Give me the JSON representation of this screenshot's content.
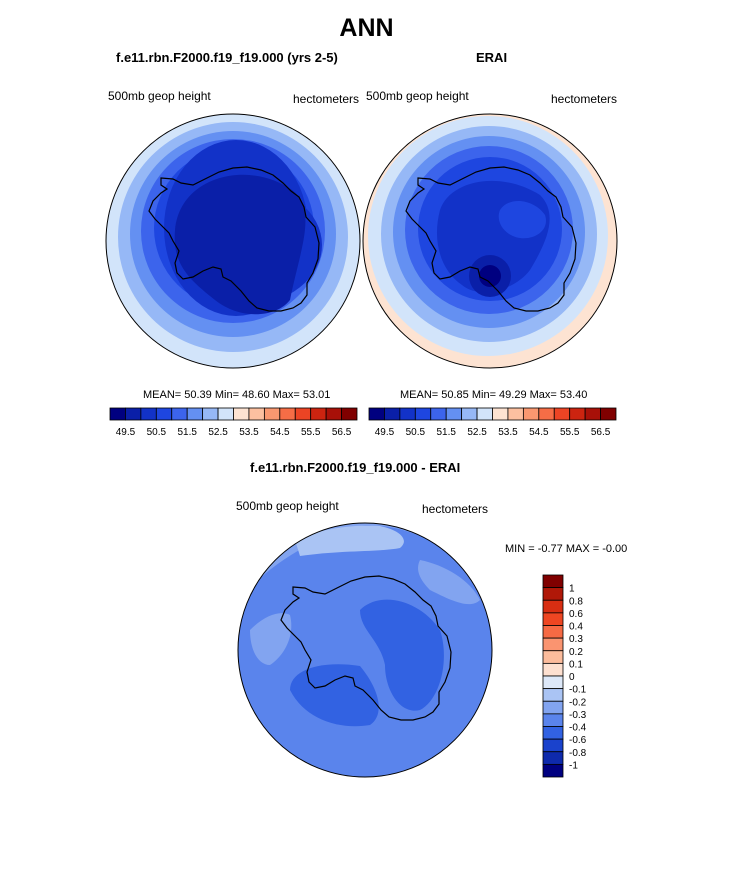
{
  "title": "ANN",
  "panel_left": {
    "case_title": "f.e11.rbn.F2000.f19_f19.000 (yrs 2-5)",
    "var_label": "500mb geop height",
    "units_label": "hectometers",
    "stats": "MEAN=  50.39  Min=  48.60  Max=  53.01"
  },
  "panel_right": {
    "case_title": "ERAI",
    "var_label": "500mb geop height",
    "units_label": "hectometers",
    "stats": "MEAN=  50.85  Min=  49.29  Max=  53.40"
  },
  "panel_diff": {
    "case_title": "f.e11.rbn.F2000.f19_f19.000 - ERAI",
    "var_label": "500mb geop height",
    "units_label": "hectometers",
    "minmax": "MIN =  -0.77 MAX =  -0.00"
  },
  "colorbar_top": {
    "labels": [
      "49.5",
      "50.5",
      "51.5",
      "52.5",
      "53.5",
      "54.5",
      "55.5",
      "56.5"
    ],
    "colors": [
      "#000080",
      "#0a1fa8",
      "#1232c8",
      "#1e46e0",
      "#3c64ec",
      "#6490f2",
      "#96b8f6",
      "#d2e4fa",
      "#fde3d2",
      "#fcc0a0",
      "#fa9870",
      "#f66d46",
      "#ec4424",
      "#cc2410",
      "#a81008",
      "#800000"
    ]
  },
  "colorbar_diff": {
    "labels": [
      "1",
      "0.8",
      "0.6",
      "0.4",
      "0.3",
      "0.2",
      "0.1",
      "0",
      "-0.1",
      "-0.2",
      "-0.3",
      "-0.4",
      "-0.6",
      "-0.8",
      "-1"
    ],
    "colors": [
      "#800000",
      "#b01808",
      "#d82e12",
      "#ee4622",
      "#f66a44",
      "#fa9470",
      "#fcbc9c",
      "#fde0d0",
      "#dde8f8",
      "#aac4f4",
      "#82a4f0",
      "#5a84ec",
      "#3262e2",
      "#1a42cc",
      "#0e2aac",
      "#000080"
    ]
  },
  "map_colors": {
    "outer_ring": "#d2e4fa",
    "coast": "#000000"
  }
}
